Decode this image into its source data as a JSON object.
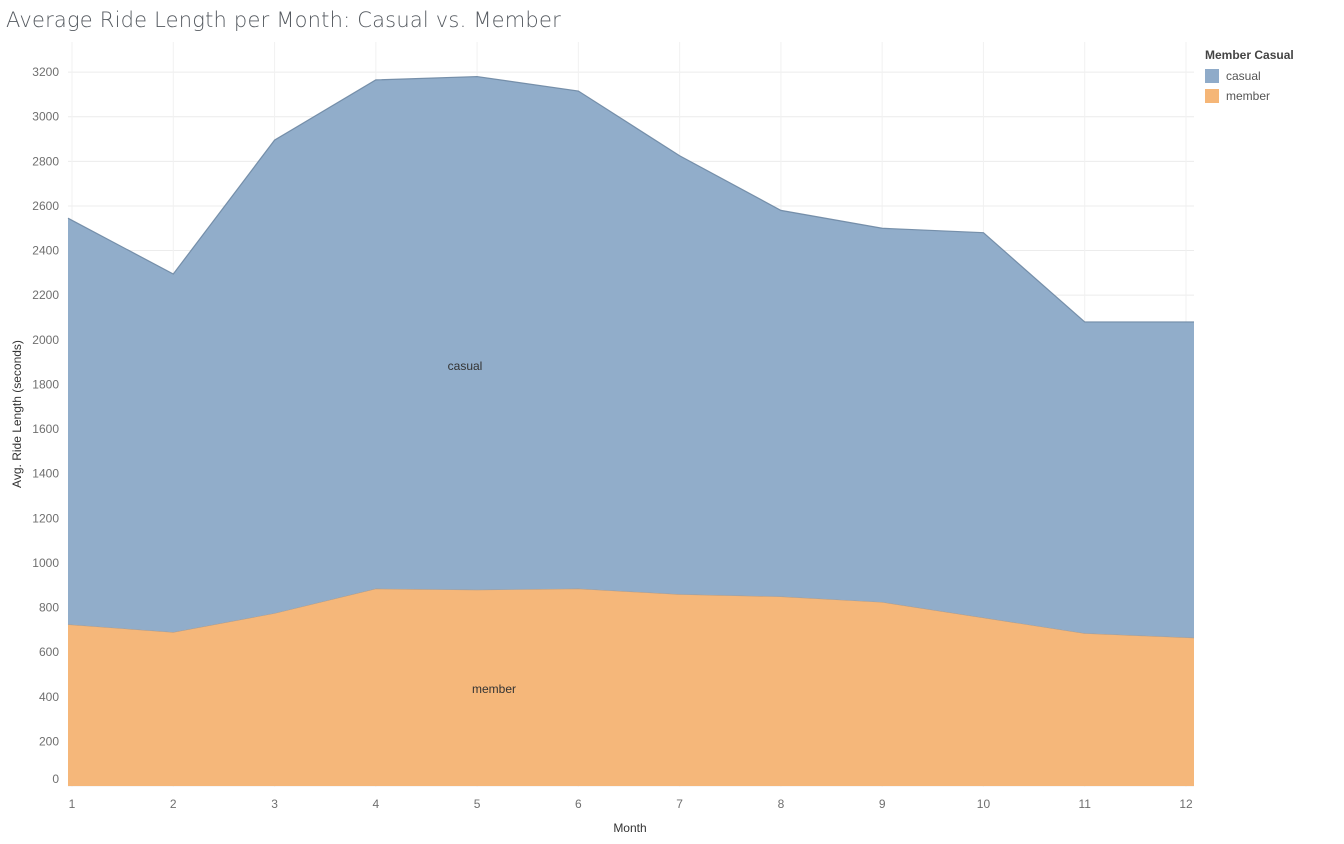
{
  "chart_data": {
    "type": "area",
    "stacked": true,
    "title": "Average Ride Length per Month: Casual vs. Member",
    "xlabel": "Month",
    "ylabel": "Avg. Ride Length (seconds)",
    "categories": [
      "1",
      "2",
      "3",
      "4",
      "5",
      "6",
      "7",
      "8",
      "9",
      "10",
      "11",
      "12"
    ],
    "y_ticks": [
      0,
      200,
      400,
      600,
      800,
      1000,
      1200,
      1400,
      1600,
      1800,
      2000,
      2200,
      2400,
      2600,
      2800,
      3000,
      3200
    ],
    "ylim": [
      0,
      3300
    ],
    "grid": true,
    "legend": {
      "title": "Member Casual",
      "position": "top-right",
      "items": [
        {
          "label": "casual",
          "color": "#8fabc9"
        },
        {
          "label": "member",
          "color": "#f5b677"
        }
      ]
    },
    "series": [
      {
        "name": "member",
        "color": "#f5b677",
        "area_label": "member",
        "values": [
          725,
          690,
          775,
          885,
          880,
          885,
          860,
          850,
          825,
          755,
          685,
          665
        ]
      },
      {
        "name": "casual",
        "color": "#8fabc9",
        "area_label": "casual",
        "values": [
          1820,
          1605,
          2120,
          2280,
          2300,
          2230,
          1965,
          1730,
          1675,
          1725,
          1395,
          1415
        ]
      }
    ]
  }
}
